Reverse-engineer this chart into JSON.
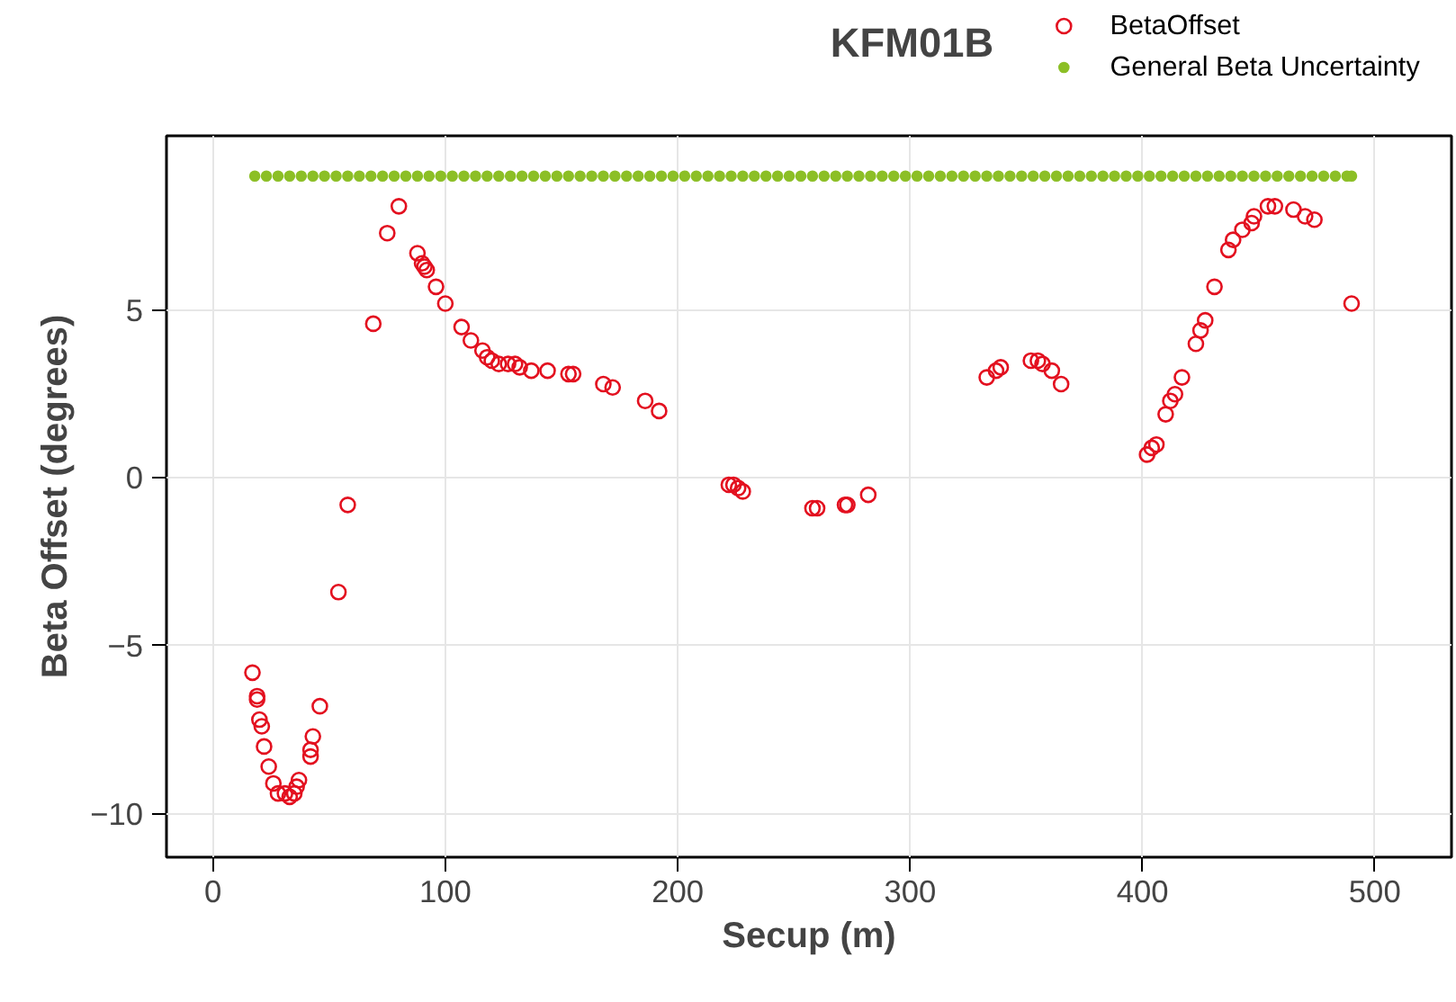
{
  "chart_data": {
    "type": "scatter",
    "title": "KFM01B",
    "xlabel": "Secup (m)",
    "ylabel": "Beta Offset (degrees)",
    "xlim": [
      -20,
      533
    ],
    "ylim": [
      -11.3,
      10.2
    ],
    "xticks": [
      0,
      100,
      200,
      300,
      400,
      500
    ],
    "yticks": [
      -10,
      -5,
      0,
      5
    ],
    "grid": true,
    "legend": "top right",
    "marker": "circle",
    "series": [
      {
        "name": "BetaOffset",
        "color": "#e3101f",
        "x": [
          17,
          19,
          19,
          20,
          21,
          22,
          24,
          26,
          28,
          31,
          33,
          35,
          36,
          37,
          42,
          42,
          43,
          46,
          54,
          58,
          69,
          75,
          80,
          88,
          90,
          91,
          92,
          96,
          100,
          107,
          111,
          116,
          118,
          120,
          123,
          127,
          130,
          132,
          137,
          144,
          153,
          155,
          168,
          172,
          186,
          192,
          222,
          224,
          226,
          228,
          258,
          260,
          272,
          273,
          282,
          333,
          337,
          339,
          352,
          355,
          357,
          361,
          365,
          402,
          404,
          406,
          410,
          412,
          414,
          417,
          423,
          425,
          427,
          431,
          437,
          439,
          443,
          447,
          448,
          454,
          457,
          465,
          470,
          474,
          490
        ],
        "values": [
          -5.8,
          -6.5,
          -6.6,
          -7.2,
          -7.4,
          -8.0,
          -8.6,
          -9.1,
          -9.4,
          -9.4,
          -9.5,
          -9.4,
          -9.2,
          -9.0,
          -8.3,
          -8.1,
          -7.7,
          -6.8,
          -3.4,
          -0.8,
          4.6,
          7.3,
          8.1,
          6.7,
          6.4,
          6.3,
          6.2,
          5.7,
          5.2,
          4.5,
          4.1,
          3.8,
          3.6,
          3.5,
          3.4,
          3.4,
          3.4,
          3.3,
          3.2,
          3.2,
          3.1,
          3.1,
          2.8,
          2.7,
          2.3,
          2.0,
          -0.2,
          -0.2,
          -0.3,
          -0.4,
          -0.9,
          -0.9,
          -0.8,
          -0.8,
          -0.5,
          3.0,
          3.2,
          3.3,
          3.5,
          3.5,
          3.4,
          3.2,
          2.8,
          0.7,
          0.9,
          1.0,
          1.9,
          2.3,
          2.5,
          3.0,
          4.0,
          4.4,
          4.7,
          5.7,
          6.8,
          7.1,
          7.4,
          7.6,
          7.8,
          8.1,
          8.1,
          8.0,
          7.8,
          7.7,
          5.2
        ]
      },
      {
        "name": "General Beta Uncertainty",
        "color": "#8cbf26",
        "x": [
          18,
          23,
          28,
          33,
          38,
          43,
          48,
          53,
          58,
          63,
          68,
          73,
          78,
          83,
          88,
          93,
          98,
          103,
          108,
          113,
          118,
          123,
          128,
          133,
          138,
          143,
          148,
          153,
          158,
          163,
          168,
          173,
          178,
          183,
          188,
          193,
          198,
          203,
          208,
          213,
          218,
          223,
          228,
          233,
          238,
          243,
          248,
          253,
          258,
          263,
          268,
          273,
          278,
          283,
          288,
          293,
          298,
          303,
          308,
          313,
          318,
          323,
          328,
          333,
          338,
          343,
          348,
          353,
          358,
          363,
          368,
          373,
          378,
          383,
          388,
          393,
          398,
          403,
          408,
          413,
          418,
          423,
          428,
          433,
          438,
          443,
          448,
          453,
          458,
          463,
          468,
          473,
          478,
          483,
          488,
          490
        ],
        "values": [
          9,
          9,
          9,
          9,
          9,
          9,
          9,
          9,
          9,
          9,
          9,
          9,
          9,
          9,
          9,
          9,
          9,
          9,
          9,
          9,
          9,
          9,
          9,
          9,
          9,
          9,
          9,
          9,
          9,
          9,
          9,
          9,
          9,
          9,
          9,
          9,
          9,
          9,
          9,
          9,
          9,
          9,
          9,
          9,
          9,
          9,
          9,
          9,
          9,
          9,
          9,
          9,
          9,
          9,
          9,
          9,
          9,
          9,
          9,
          9,
          9,
          9,
          9,
          9,
          9,
          9,
          9,
          9,
          9,
          9,
          9,
          9,
          9,
          9,
          9,
          9,
          9,
          9,
          9,
          9,
          9,
          9,
          9,
          9,
          9,
          9,
          9,
          9,
          9,
          9,
          9,
          9,
          9,
          9,
          9,
          9
        ]
      }
    ]
  }
}
